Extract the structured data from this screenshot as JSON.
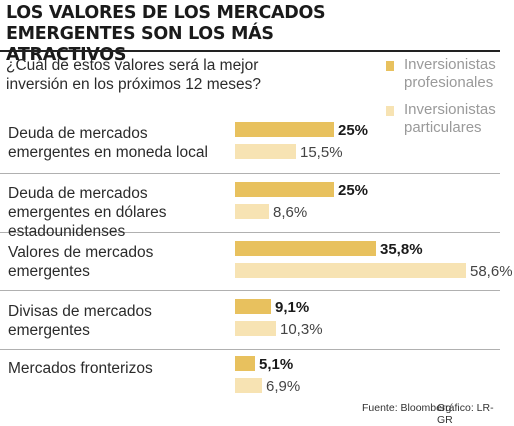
{
  "title": "LOS VALORES DE LOS MERCADOS EMERGENTES SON LOS MÁS ATRACTIVOS",
  "subtitle": "¿Cuál de estos valores será la mejor inversión en los próximos 12 meses?",
  "source": "Fuente: Bloomberg",
  "credit": "Gráfico: LR-GR",
  "colors": {
    "profesionales": "#e8c15e",
    "particulares": "#f7e3b3"
  },
  "chart_data": {
    "type": "bar",
    "orientation": "horizontal",
    "title": "LOS VALORES DE LOS MERCADOS EMERGENTES SON LOS MÁS ATRACTIVOS",
    "subtitle": "¿Cuál de estos valores será la mejor inversión en los próximos 12 meses?",
    "categories": [
      "Deuda de mercados emergentes en moneda local",
      "Deuda de mercados emergentes en dólares estadounidenses",
      "Valores de mercados emergentes",
      "Divisas de mercados emergentes",
      "Mercados fronterizos"
    ],
    "series": [
      {
        "name": "Inversionistas profesionales",
        "values": [
          25,
          25,
          35.8,
          9.1,
          5.1
        ],
        "labels": [
          "25%",
          "25%",
          "35,8%",
          "9,1%",
          "5,1%"
        ]
      },
      {
        "name": "Inversionistas particulares",
        "values": [
          15.5,
          8.6,
          58.6,
          10.3,
          6.9
        ],
        "labels": [
          "15,5%",
          "8,6%",
          "58,6%",
          "10,3%",
          "6,9%"
        ]
      }
    ],
    "legend_position": "top-right",
    "grid": false,
    "unit": "%"
  }
}
